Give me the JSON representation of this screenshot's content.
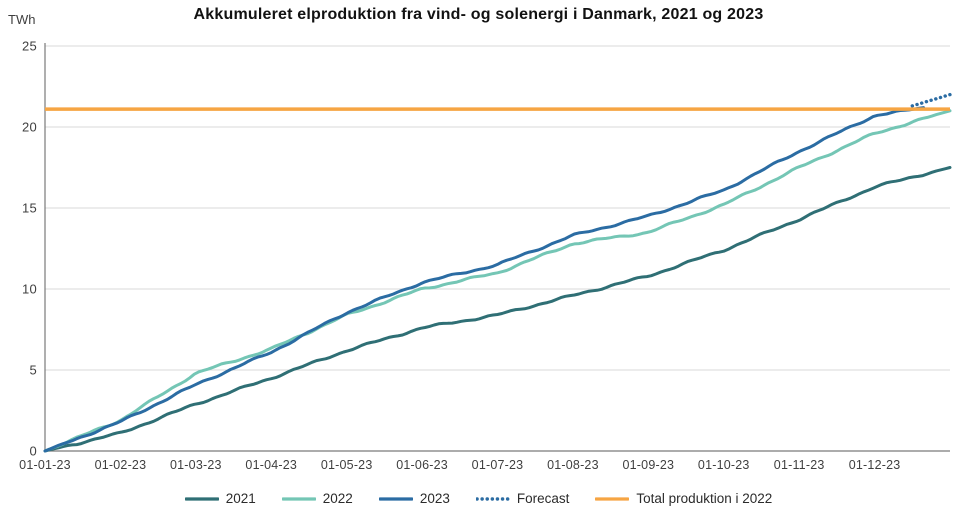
{
  "chart_data": {
    "type": "line",
    "title": "Akkumuleret elproduktion fra vind- og solenergi i Danmark, 2021 og 2023",
    "ylabel": "TWh",
    "xlabel": "",
    "ylim": [
      0,
      25
    ],
    "yticks": [
      0,
      5,
      10,
      15,
      20,
      25
    ],
    "x_tick_labels": [
      "01-01-23",
      "01-02-23",
      "01-03-23",
      "01-04-23",
      "01-05-23",
      "01-06-23",
      "01-07-23",
      "01-08-23",
      "01-09-23",
      "01-10-23",
      "01-11-23",
      "01-12-23"
    ],
    "x_range_months": [
      0,
      12
    ],
    "grid": "horizontal-only",
    "legend_position": "bottom",
    "series": [
      {
        "name": "2021",
        "color": "#2F6F75",
        "style": "solid",
        "x": [
          0,
          1,
          2,
          3,
          4,
          5,
          6,
          7,
          8,
          9,
          10,
          11,
          12
        ],
        "values": [
          0,
          1.1,
          2.9,
          4.5,
          6.2,
          7.6,
          8.4,
          9.6,
          10.8,
          12.4,
          14.3,
          16.3,
          17.5
        ]
      },
      {
        "name": "2022",
        "color": "#74C6B5",
        "style": "solid",
        "x": [
          0,
          1,
          2,
          3,
          4,
          5,
          6,
          7,
          8,
          9,
          10,
          11,
          12
        ],
        "values": [
          0,
          1.9,
          4.8,
          6.3,
          8.4,
          10.0,
          11.0,
          12.8,
          13.5,
          15.2,
          17.5,
          19.6,
          21.0
        ]
      },
      {
        "name": "2023",
        "color": "#2B6CA3",
        "style": "solid",
        "x": [
          0,
          1,
          2,
          3,
          4,
          5,
          6,
          7,
          8,
          9,
          10,
          11,
          11.65
        ],
        "values": [
          0,
          1.8,
          4.1,
          6.1,
          8.55,
          10.4,
          11.5,
          13.3,
          14.5,
          16.1,
          18.5,
          20.7,
          21.2
        ]
      },
      {
        "name": "Forecast",
        "color": "#2B6CA3",
        "style": "dotted",
        "x": [
          11.5,
          12
        ],
        "values": [
          21.3,
          22.0
        ]
      }
    ],
    "reference_line": {
      "label": "Total produktion i 2022",
      "value": 21.1,
      "color": "#F6A543"
    },
    "legend_items": [
      {
        "label": "2021",
        "color": "#2F6F75",
        "style": "solid"
      },
      {
        "label": "2022",
        "color": "#74C6B5",
        "style": "solid"
      },
      {
        "label": "2023",
        "color": "#2B6CA3",
        "style": "solid"
      },
      {
        "label": "Forecast",
        "color": "#2B6CA3",
        "style": "dotted"
      },
      {
        "label": "Total produktion i 2022",
        "color": "#F6A543",
        "style": "solid"
      }
    ],
    "colors": {
      "grid": "#d9d9d9",
      "axis": "#7a7a7a",
      "tick_text": "#3f3f3f",
      "title_text": "#121212"
    }
  }
}
